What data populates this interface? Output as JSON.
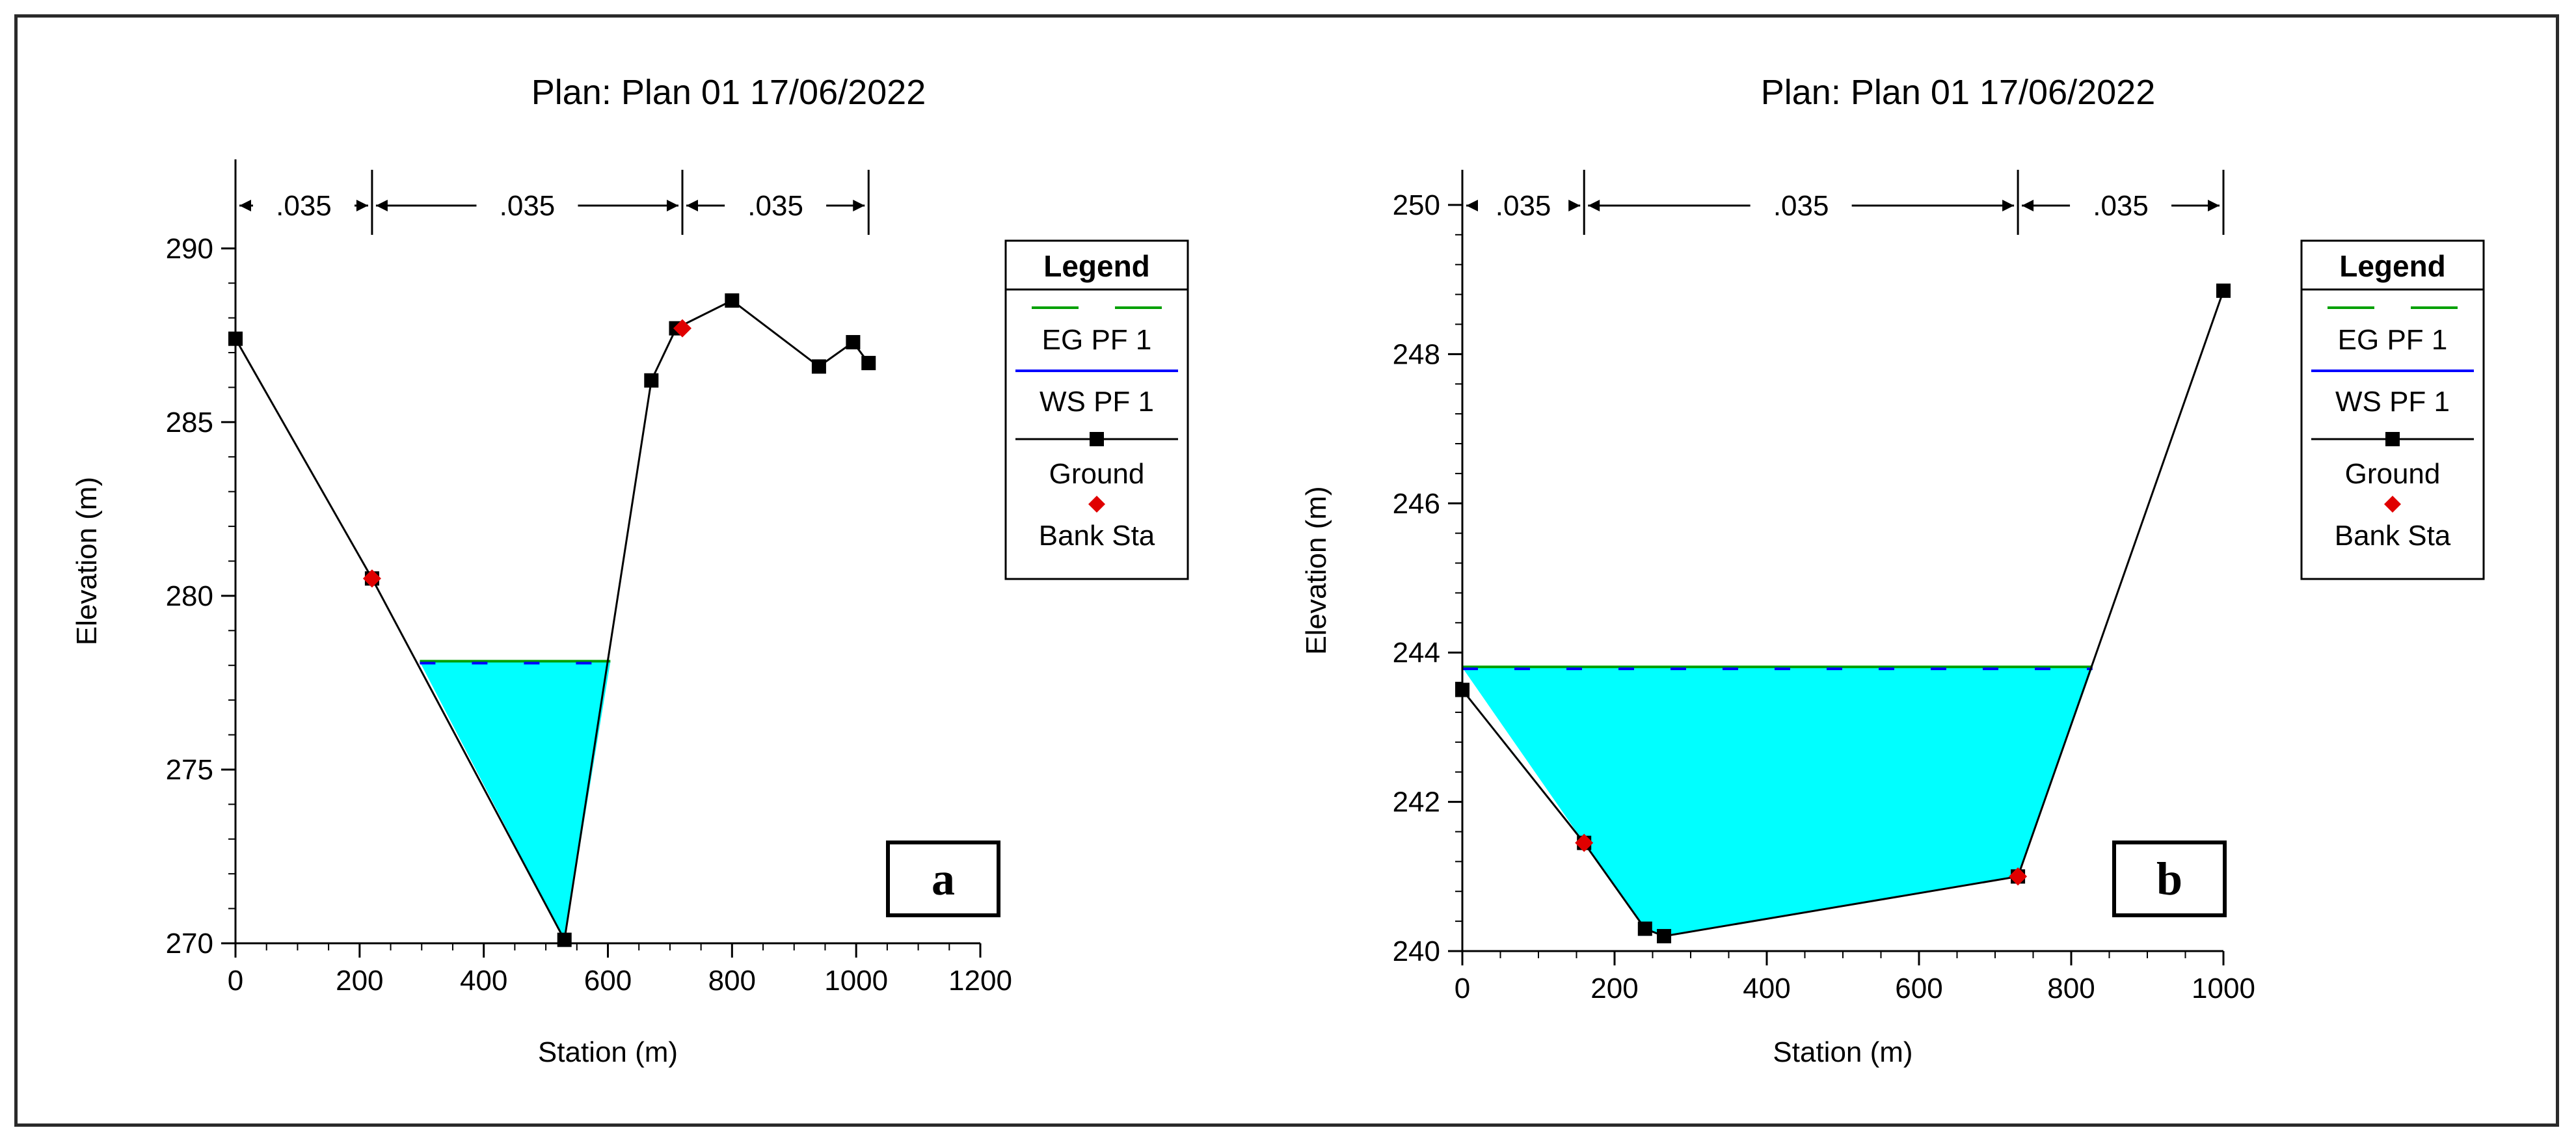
{
  "chart_data": [
    {
      "type": "line",
      "panel_label": "a",
      "title": "Plan: Plan 01    17/06/2022",
      "xlabel": "Station (m)",
      "ylabel": "Elevation (m)",
      "xlim": [
        0,
        1200
      ],
      "ylim": [
        270,
        292
      ],
      "xticks": [
        0,
        200,
        400,
        600,
        800,
        1000,
        1200
      ],
      "yticks": [
        270,
        275,
        280,
        285,
        290
      ],
      "xtick_labels": [
        "0",
        "200",
        "400",
        "600",
        "800",
        "1000",
        "1200"
      ],
      "ytick_labels": [
        "270",
        "275",
        "280",
        "285",
        "290"
      ],
      "grid": false,
      "legend_position": "right",
      "legend": {
        "title": "Legend",
        "entries": [
          "EG PF 1",
          "WS PF 1",
          "Ground",
          "Bank Sta"
        ]
      },
      "mannings_n": {
        "boundaries": [
          0,
          220,
          720,
          1020
        ],
        "labels": [
          ".035",
          ".035",
          ".035"
        ]
      },
      "ground": {
        "x": [
          0,
          220,
          530,
          670,
          710,
          800,
          940,
          995,
          1020
        ],
        "y": [
          287.4,
          280.5,
          270.1,
          286.2,
          287.7,
          288.5,
          286.6,
          287.3,
          286.7
        ]
      },
      "bank_stations": {
        "x": [
          220,
          720
        ],
        "y": [
          280.5,
          287.7
        ]
      },
      "water_surface": {
        "elevation": 278.1,
        "x_left": 297,
        "x_right": 604
      },
      "energy_grade": {
        "elevation": 278.1
      },
      "colors": {
        "water_fill": "#00ffff",
        "eg": "#00a000",
        "ws": "#0000ff",
        "ground": "#000000",
        "bank": "#e00000"
      }
    },
    {
      "type": "line",
      "panel_label": "b",
      "title": "Plan: Plan 01    17/06/2022",
      "xlabel": "Station (m)",
      "ylabel": "Elevation (m)",
      "xlim": [
        0,
        1000
      ],
      "ylim": [
        240,
        250.2
      ],
      "xticks": [
        0,
        200,
        400,
        600,
        800,
        1000
      ],
      "yticks": [
        240,
        242,
        244,
        246,
        248,
        250
      ],
      "xtick_labels": [
        "0",
        "200",
        "400",
        "600",
        "800",
        "1000"
      ],
      "ytick_labels": [
        "240",
        "242",
        "244",
        "246",
        "248",
        "250"
      ],
      "grid": false,
      "legend_position": "right",
      "legend": {
        "title": "Legend",
        "entries": [
          "EG PF 1",
          "WS PF 1",
          "Ground",
          "Bank Sta"
        ]
      },
      "mannings_n": {
        "boundaries": [
          0,
          160,
          730,
          1000
        ],
        "labels": [
          ".035",
          ".035",
          ".035"
        ]
      },
      "ground": {
        "x": [
          0,
          160,
          240,
          265,
          730,
          1000
        ],
        "y": [
          243.5,
          241.45,
          240.3,
          240.2,
          241.0,
          248.85
        ]
      },
      "bank_stations": {
        "x": [
          160,
          730
        ],
        "y": [
          241.45,
          241.0
        ]
      },
      "water_surface": {
        "elevation": 243.8,
        "x_left": 0,
        "x_right": 828
      },
      "energy_grade": {
        "elevation": 243.8
      },
      "colors": {
        "water_fill": "#00ffff",
        "eg": "#00a000",
        "ws": "#0000ff",
        "ground": "#000000",
        "bank": "#e00000"
      }
    }
  ]
}
